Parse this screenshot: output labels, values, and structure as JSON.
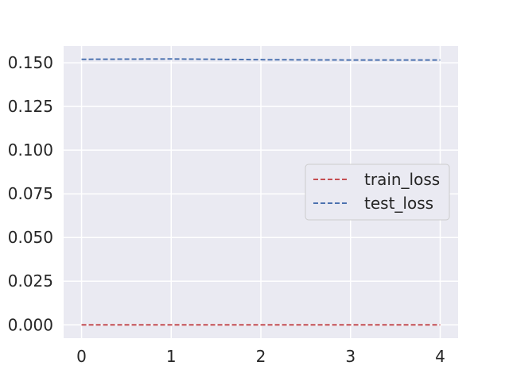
{
  "chart_data": {
    "type": "line",
    "title": "",
    "xlabel": "",
    "ylabel": "",
    "x": [
      0,
      1,
      2,
      3,
      4
    ],
    "xlim": [
      -0.2,
      4.2
    ],
    "ylim": [
      -0.0076,
      0.1596
    ],
    "xticks": [
      0,
      1,
      2,
      3,
      4
    ],
    "yticks": [
      0.0,
      0.025,
      0.05,
      0.075,
      0.1,
      0.125,
      0.15
    ],
    "ytick_labels": [
      "0.000",
      "0.025",
      "0.050",
      "0.075",
      "0.100",
      "0.125",
      "0.150"
    ],
    "grid": true,
    "legend_position": "center-right",
    "series": [
      {
        "name": "train_loss",
        "values": [
          0.0,
          0.0,
          0.0,
          0.0,
          0.0
        ],
        "color": "#c44e52",
        "style": "dashed"
      },
      {
        "name": "test_loss",
        "values": [
          0.152,
          0.1522,
          0.1518,
          0.1516,
          0.1516
        ],
        "color": "#4c72b0",
        "style": "dashed"
      }
    ]
  }
}
